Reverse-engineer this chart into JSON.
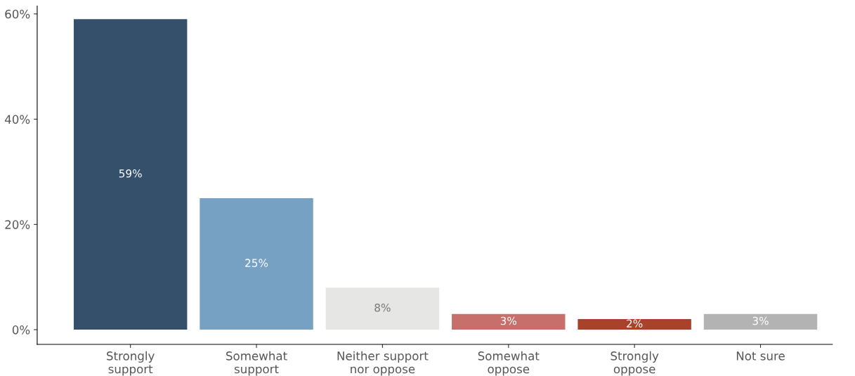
{
  "chart_data": {
    "type": "bar",
    "categories": [
      "Strongly\nsupport",
      "Somewhat\nsupport",
      "Neither support\nnor oppose",
      "Somewhat\noppose",
      "Strongly\noppose",
      "Not sure"
    ],
    "values": [
      59,
      25,
      8,
      3,
      2,
      3
    ],
    "colors": [
      "#34506a",
      "#76a1c3",
      "#e6e6e4",
      "#c76f6b",
      "#a8432b",
      "#b3b3b3"
    ],
    "value_labels": [
      "59%",
      "25%",
      "8%",
      "3%",
      "2%",
      "3%"
    ],
    "ylim": [
      -2.8,
      61.5
    ],
    "yticks": [
      {
        "value": 0,
        "label": "0%"
      },
      {
        "value": 20,
        "label": "20%"
      },
      {
        "value": 40,
        "label": "40%"
      },
      {
        "value": 60,
        "label": "60%"
      }
    ],
    "grid": false,
    "legend": false
  }
}
